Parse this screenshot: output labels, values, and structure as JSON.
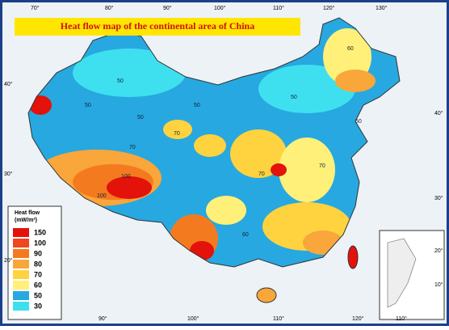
{
  "title": "Heat flow map of the continental area of China",
  "legend": {
    "title": "Heat flow",
    "unit": "(mW/m²)",
    "items": [
      {
        "label": "150",
        "color": "#e3120b"
      },
      {
        "label": "100",
        "color": "#f2461f"
      },
      {
        "label": "90",
        "color": "#f47a20"
      },
      {
        "label": "80",
        "color": "#f9a63a"
      },
      {
        "label": "70",
        "color": "#ffd23f"
      },
      {
        "label": "60",
        "color": "#fff07a"
      },
      {
        "label": "50",
        "color": "#27a8e0"
      },
      {
        "label": "30",
        "color": "#3ee0f0"
      }
    ]
  },
  "axes": {
    "top": [
      "70°",
      "80°",
      "90°",
      "100°",
      "110°",
      "120°",
      "130°"
    ],
    "bottom": [
      "90°",
      "100°",
      "110°",
      "120°",
      "110°"
    ],
    "left": [
      "40°",
      "30°",
      "20°"
    ],
    "right": [
      "40°",
      "30°",
      "20°",
      "10°"
    ]
  },
  "contour_labels": [
    "50",
    "50",
    "50",
    "50",
    "50",
    "50",
    "70",
    "70",
    "70",
    "70",
    "100",
    "100",
    "60",
    "60"
  ]
}
